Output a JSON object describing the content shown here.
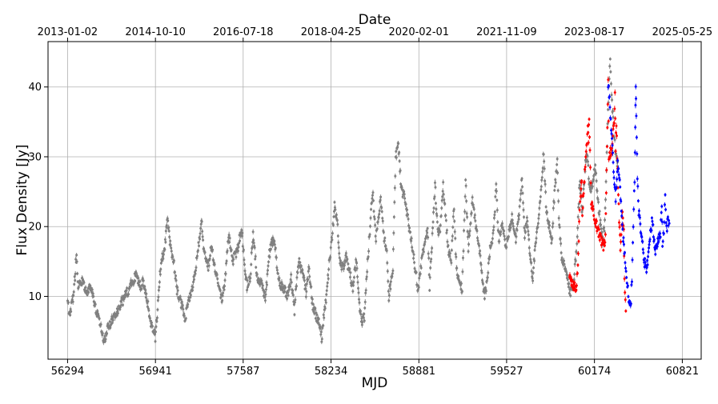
{
  "chart_data": {
    "type": "scatter",
    "title": "",
    "xlabel": "MJD",
    "ylabel": "Flux Density [Jy]",
    "x2label": "Date",
    "xlim": [
      56150,
      60960
    ],
    "ylim": [
      1.0,
      46.5
    ],
    "grid": true,
    "x_ticks": [
      56294,
      56941,
      57587,
      58234,
      58881,
      59527,
      60174,
      60821
    ],
    "y_ticks": [
      10,
      20,
      30,
      40
    ],
    "top_ticks": [
      {
        "x": 56294,
        "label": "2013-01-02"
      },
      {
        "x": 56941,
        "label": "2014-10-10"
      },
      {
        "x": 57587,
        "label": "2016-07-18"
      },
      {
        "x": 58234,
        "label": "2018-04-25"
      },
      {
        "x": 58881,
        "label": "2020-02-01"
      },
      {
        "x": 59527,
        "label": "2021-11-09"
      },
      {
        "x": 60174,
        "label": "2023-08-17"
      },
      {
        "x": 60821,
        "label": "2025-05-25"
      }
    ],
    "series": [
      {
        "color": "#808080",
        "knots": [
          [
            56294,
            9.2
          ],
          [
            56310,
            7.5
          ],
          [
            56340,
            10.5
          ],
          [
            56360,
            16.3
          ],
          [
            56372,
            11.5
          ],
          [
            56400,
            12.5
          ],
          [
            56430,
            10.5
          ],
          [
            56470,
            11.5
          ],
          [
            56505,
            7.8
          ],
          [
            56540,
            5.5
          ],
          [
            56565,
            3.5
          ],
          [
            56590,
            5.5
          ],
          [
            56800,
            13.0
          ],
          [
            56830,
            11.5
          ],
          [
            56850,
            12.0
          ],
          [
            56880,
            9.5
          ],
          [
            56910,
            6.0
          ],
          [
            56940,
            4.2
          ],
          [
            56960,
            9.0
          ],
          [
            56980,
            14.5
          ],
          [
            57010,
            17.0
          ],
          [
            57030,
            21.0
          ],
          [
            57050,
            17.5
          ],
          [
            57075,
            15.0
          ],
          [
            57100,
            11.0
          ],
          [
            57130,
            9.0
          ],
          [
            57160,
            6.8
          ],
          [
            57180,
            9.0
          ],
          [
            57220,
            12.0
          ],
          [
            57255,
            16.5
          ],
          [
            57280,
            21.0
          ],
          [
            57300,
            16.0
          ],
          [
            57330,
            14.0
          ],
          [
            57350,
            17.5
          ],
          [
            57380,
            14.0
          ],
          [
            57410,
            11.0
          ],
          [
            57430,
            9.5
          ],
          [
            57450,
            11.5
          ],
          [
            57480,
            19.0
          ],
          [
            57510,
            15.0
          ],
          [
            57550,
            17.0
          ],
          [
            57575,
            20.0
          ],
          [
            57600,
            14.0
          ],
          [
            57615,
            11.5
          ],
          [
            57640,
            13.0
          ],
          [
            57660,
            19.0
          ],
          [
            57690,
            12.5
          ],
          [
            57720,
            12.0
          ],
          [
            57750,
            9.5
          ],
          [
            57780,
            16.0
          ],
          [
            57800,
            18.0
          ],
          [
            57820,
            17.5
          ],
          [
            57850,
            12.0
          ],
          [
            57880,
            11.5
          ],
          [
            57910,
            10.0
          ],
          [
            57940,
            12.5
          ],
          [
            57965,
            8.0
          ],
          [
            57980,
            12.0
          ],
          [
            58000,
            15.0
          ],
          [
            58030,
            13.0
          ],
          [
            58050,
            10.5
          ],
          [
            58070,
            14.0
          ],
          [
            58100,
            8.5
          ],
          [
            58130,
            7.0
          ],
          [
            58150,
            6.0
          ],
          [
            58165,
            3.8
          ],
          [
            58185,
            8.0
          ],
          [
            58200,
            10.0
          ],
          [
            58220,
            14.5
          ],
          [
            58245,
            19.0
          ],
          [
            58260,
            23.0
          ],
          [
            58280,
            20.5
          ],
          [
            58300,
            15.0
          ],
          [
            58325,
            14.0
          ],
          [
            58345,
            15.5
          ],
          [
            58375,
            13.0
          ],
          [
            58395,
            11.0
          ],
          [
            58420,
            15.5
          ],
          [
            58440,
            9.0
          ],
          [
            58460,
            6.5
          ],
          [
            58480,
            7.0
          ],
          [
            58500,
            14.0
          ],
          [
            58520,
            19.5
          ],
          [
            58540,
            25.0
          ],
          [
            58565,
            18.5
          ],
          [
            58580,
            21.0
          ],
          [
            58600,
            24.0
          ],
          [
            58625,
            18.5
          ],
          [
            58645,
            16.0
          ],
          [
            58660,
            10.0
          ],
          [
            58690,
            14.0
          ],
          [
            58710,
            30.0
          ],
          [
            58730,
            32.0
          ],
          [
            58750,
            25.5
          ],
          [
            58780,
            24.0
          ],
          [
            58800,
            21.0
          ],
          [
            58830,
            17.5
          ],
          [
            58850,
            14.5
          ],
          [
            58875,
            11.0
          ],
          [
            58895,
            14.0
          ],
          [
            58920,
            17.5
          ],
          [
            58945,
            20.0
          ],
          [
            58960,
            11.5
          ],
          [
            58980,
            18.5
          ],
          [
            59000,
            26.0
          ],
          [
            59020,
            19.0
          ],
          [
            59040,
            20.0
          ],
          [
            59060,
            26.0
          ],
          [
            59085,
            19.5
          ],
          [
            59100,
            16.0
          ],
          [
            59120,
            15.5
          ],
          [
            59140,
            23.0
          ],
          [
            59155,
            15.0
          ],
          [
            59175,
            12.0
          ],
          [
            59200,
            11.0
          ],
          [
            59225,
            26.5
          ],
          [
            59245,
            17.0
          ],
          [
            59275,
            24.0
          ],
          [
            59300,
            20.0
          ],
          [
            59325,
            17.0
          ],
          [
            59345,
            13.0
          ],
          [
            59365,
            10.0
          ],
          [
            59385,
            12.0
          ],
          [
            59405,
            17.0
          ],
          [
            59430,
            19.0
          ],
          [
            59450,
            25.5
          ],
          [
            59470,
            18.0
          ],
          [
            59495,
            21.0
          ],
          [
            59520,
            17.0
          ],
          [
            59545,
            19.0
          ],
          [
            59570,
            21.5
          ],
          [
            59595,
            18.0
          ],
          [
            59620,
            22.0
          ],
          [
            59640,
            27.0
          ],
          [
            59660,
            18.5
          ],
          [
            59680,
            21.0
          ],
          [
            59700,
            16.0
          ],
          [
            59720,
            12.5
          ],
          [
            59740,
            18.0
          ],
          [
            59760,
            21.0
          ],
          [
            59780,
            25.5
          ],
          [
            59800,
            30.5
          ],
          [
            59820,
            22.0
          ],
          [
            59840,
            20.0
          ],
          [
            59860,
            18.0
          ],
          [
            59880,
            25.0
          ],
          [
            59900,
            29.0
          ],
          [
            59915,
            20.0
          ],
          [
            59935,
            15.0
          ],
          [
            59955,
            14.5
          ],
          [
            59975,
            12.5
          ],
          [
            59995,
            10.5
          ],
          [
            60015,
            11.0
          ],
          [
            60030,
            14.0
          ],
          [
            60045,
            17.0
          ],
          [
            60065,
            26.5
          ],
          [
            60085,
            22.0
          ],
          [
            60105,
            28.5
          ],
          [
            60120,
            30.5
          ],
          [
            60140,
            25.0
          ],
          [
            60160,
            26.0
          ],
          [
            60180,
            29.0
          ],
          [
            60200,
            23.5
          ],
          [
            60215,
            21.0
          ],
          [
            60235,
            18.0
          ],
          [
            60250,
            20.5
          ],
          [
            60265,
            30.0
          ],
          [
            60280,
            40.5
          ],
          [
            60290,
            43.5
          ],
          [
            60300,
            39.0
          ],
          [
            60315,
            34.0
          ],
          [
            60330,
            30.5
          ],
          [
            60345,
            29.0
          ]
        ]
      },
      {
        "color": "#ff0000",
        "knots": [
          [
            59990,
            12.5
          ],
          [
            60040,
            11.0
          ],
          [
            60055,
            15.5
          ],
          [
            60065,
            23.0
          ],
          [
            60075,
            25.0
          ],
          [
            60080,
            26.5
          ],
          [
            60085,
            22.0
          ],
          [
            60125,
            34.0
          ],
          [
            60130,
            32.5
          ],
          [
            60135,
            35.5
          ],
          [
            60150,
            23.5
          ],
          [
            60175,
            21.0
          ],
          [
            60240,
            17.0
          ],
          [
            60255,
            18.5
          ],
          [
            60275,
            41.0
          ],
          [
            60280,
            30.0
          ],
          [
            60300,
            31.0
          ],
          [
            60320,
            35.0
          ],
          [
            60325,
            39.5
          ],
          [
            60330,
            31.0
          ],
          [
            60335,
            34.5
          ],
          [
            60350,
            24.0
          ],
          [
            60365,
            17.0
          ],
          [
            60380,
            22.0
          ],
          [
            60390,
            19.0
          ],
          [
            60395,
            12.5
          ],
          [
            60405,
            7.5
          ]
        ]
      },
      {
        "color": "#0000ff",
        "knots": [
          [
            60275,
            40.5
          ],
          [
            60285,
            38.0
          ],
          [
            60300,
            33.5
          ],
          [
            60315,
            28.0
          ],
          [
            60330,
            24.0
          ],
          [
            60345,
            29.0
          ],
          [
            60360,
            26.0
          ],
          [
            60375,
            22.0
          ],
          [
            60385,
            18.5
          ],
          [
            60400,
            15.0
          ],
          [
            60410,
            13.0
          ],
          [
            60420,
            11.0
          ],
          [
            60430,
            9.0
          ],
          [
            60440,
            8.0
          ],
          [
            60450,
            12.5
          ],
          [
            60460,
            20.0
          ],
          [
            60470,
            27.0
          ],
          [
            60475,
            34.0
          ],
          [
            60478,
            40.0
          ],
          [
            60482,
            35.5
          ],
          [
            60490,
            27.0
          ],
          [
            60500,
            22.0
          ],
          [
            60520,
            19.0
          ],
          [
            60540,
            15.0
          ],
          [
            60560,
            14.0
          ],
          [
            60580,
            18.0
          ],
          [
            60600,
            21.0
          ],
          [
            60620,
            16.5
          ],
          [
            60640,
            18.0
          ],
          [
            60660,
            19.0
          ],
          [
            60670,
            23.0
          ],
          [
            60675,
            17.5
          ],
          [
            60685,
            19.0
          ],
          [
            60695,
            24.5
          ],
          [
            60705,
            19.5
          ],
          [
            60715,
            21.0
          ],
          [
            60725,
            20.0
          ]
        ]
      }
    ]
  }
}
